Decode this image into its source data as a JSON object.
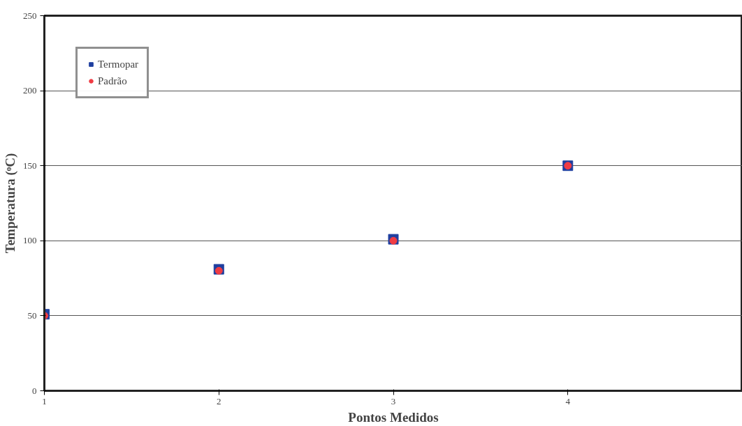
{
  "chart_data": {
    "type": "scatter",
    "xlabel": "Pontos Medidos",
    "ylabel": "Temperatura (ᵒC)",
    "x": [
      1,
      2,
      3,
      4
    ],
    "series": [
      {
        "name": "Termopar",
        "color": "#1f3f9f",
        "values": [
          51,
          81,
          101,
          150
        ],
        "marker": "square"
      },
      {
        "name": "Padrão",
        "color": "#f03c44",
        "values": [
          50,
          80,
          100,
          150
        ],
        "marker": "circle"
      }
    ],
    "xlim": [
      1,
      5
    ],
    "xticks": [
      1,
      2,
      3,
      4
    ],
    "ylim": [
      0,
      250
    ],
    "yticks": [
      0,
      50,
      100,
      150,
      200,
      250
    ],
    "grid": "y",
    "legend": "top left"
  }
}
